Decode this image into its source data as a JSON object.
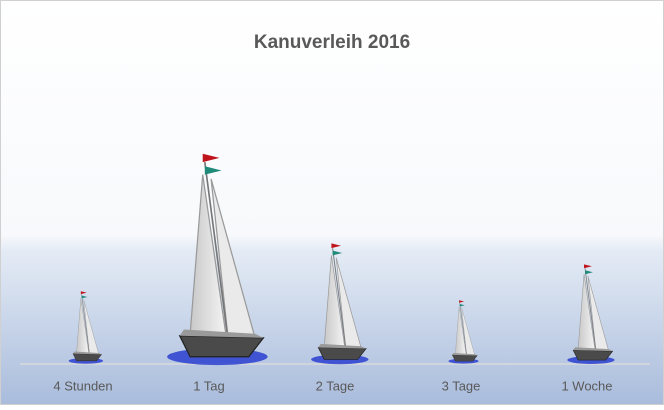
{
  "chart_data": {
    "type": "pictograph",
    "title": "Kanuverleih 2016",
    "categories": [
      "4 Stunden",
      "1 Tag",
      "2 Tage",
      "3 Tage",
      "1 Woche"
    ],
    "values": [
      24,
      70,
      40,
      21,
      33
    ],
    "ylim": [
      0,
      100
    ]
  }
}
